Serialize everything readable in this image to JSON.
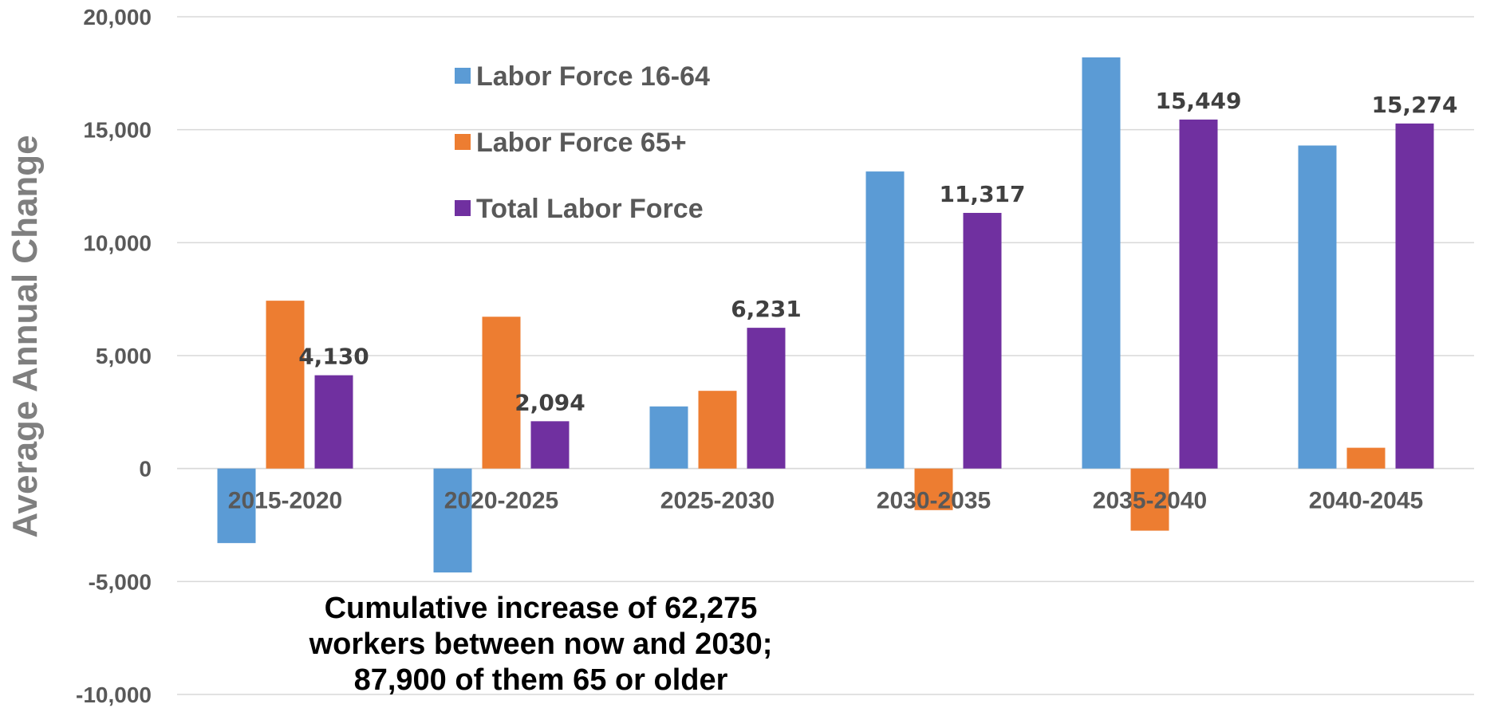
{
  "chart_data": {
    "type": "bar",
    "title": "",
    "xlabel": "",
    "ylabel": "Average Annual Change",
    "ylim": [
      -10000,
      20000
    ],
    "yticks": [
      -10000,
      -5000,
      0,
      5000,
      10000,
      15000,
      20000
    ],
    "ytick_labels": [
      "-10,000",
      "-5,000",
      "0",
      "5,000",
      "10,000",
      "15,000",
      "20,000"
    ],
    "grid": true,
    "legend_position": "top-center",
    "categories": [
      "2015-2020",
      "2020-2025",
      "2025-2030",
      "2030-2035",
      "2035-2040",
      "2040-2045"
    ],
    "series": [
      {
        "name": "Labor Force 16-64",
        "color": "#5b9bd5",
        "values": [
          -3300,
          -4600,
          2750,
          13150,
          18200,
          14300
        ]
      },
      {
        "name": "Labor Force 65+",
        "color": "#ed7d31",
        "values": [
          7430,
          6720,
          3440,
          -1840,
          -2750,
          920
        ]
      },
      {
        "name": "Total Labor Force",
        "color": "#7030a0",
        "values": [
          4130,
          2094,
          6231,
          11317,
          15449,
          15274
        ],
        "data_labels": [
          "4,130",
          "2,094",
          "6,231",
          "11,317",
          "15,449",
          "15,274"
        ]
      }
    ],
    "annotation": {
      "lines": [
        "Cumulative increase of 62,275",
        "workers between now and 2030;",
        "87,900 of them 65 or older"
      ]
    }
  }
}
